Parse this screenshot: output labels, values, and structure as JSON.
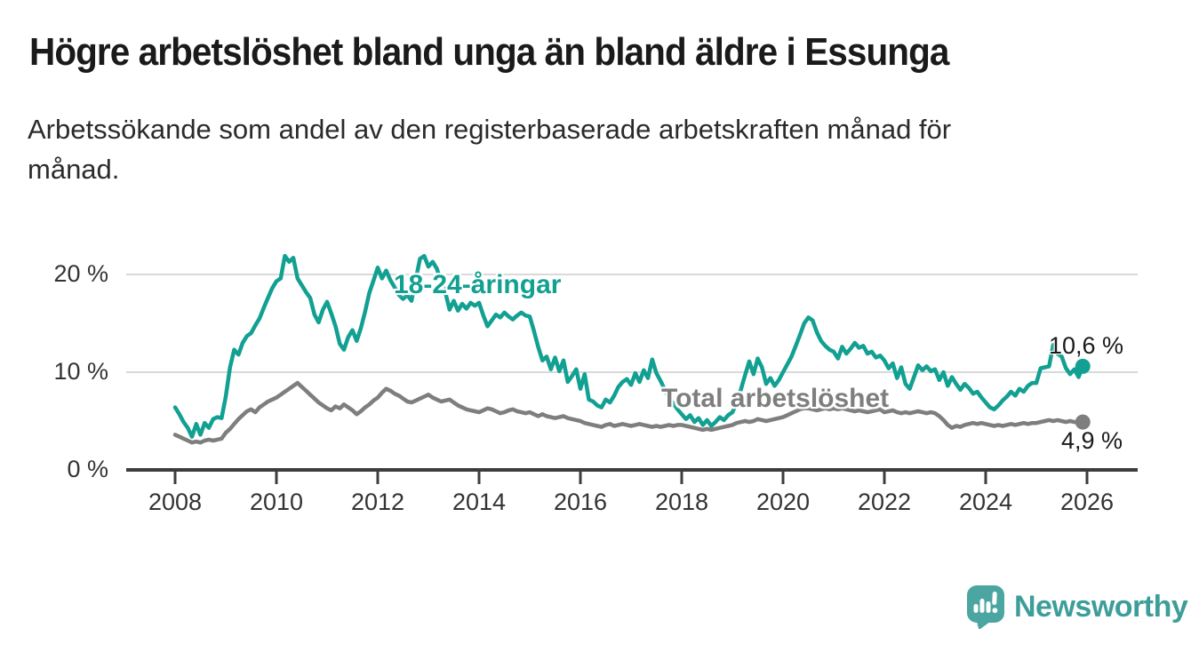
{
  "chart_data": {
    "type": "line",
    "title": "Högre arbetslöshet bland unga än bland äldre i Essunga",
    "subtitle": "Arbetssökande som andel av den registerbaserade arbetskraften månad för månad.",
    "unit": "%",
    "x_start_year": 2008,
    "points_per_year": 12,
    "xlim": [
      2007.0,
      2027.1
    ],
    "ylim": [
      0,
      22.5
    ],
    "grid": "horizontal",
    "legend_position": "inline-labels-on-lines",
    "x_ticks": [
      {
        "year": 2008,
        "label": "2008"
      },
      {
        "year": 2010,
        "label": "2010"
      },
      {
        "year": 2012,
        "label": "2012"
      },
      {
        "year": 2014,
        "label": "2014"
      },
      {
        "year": 2016,
        "label": "2016"
      },
      {
        "year": 2018,
        "label": "2018"
      },
      {
        "year": 2020,
        "label": "2020"
      },
      {
        "year": 2022,
        "label": "2022"
      },
      {
        "year": 2024,
        "label": "2024"
      },
      {
        "year": 2026,
        "label": "2026"
      }
    ],
    "y_ticks": [
      {
        "value": 0,
        "label": "0 %"
      },
      {
        "value": 10,
        "label": "10 %"
      },
      {
        "value": 20,
        "label": "20 %"
      }
    ],
    "series": [
      {
        "id": "young",
        "name": "18-24-åringar",
        "color": "#11A091",
        "end_label": "10,6 %",
        "end_value": 10.6,
        "values": [
          6.4,
          5.7,
          4.9,
          4.3,
          3.4,
          4.7,
          3.6,
          4.8,
          4.3,
          5.2,
          5.4,
          5.3,
          7.5,
          10.5,
          12.3,
          11.8,
          13.0,
          13.7,
          14.0,
          14.8,
          15.5,
          16.6,
          17.6,
          18.6,
          19.3,
          19.6,
          21.9,
          21.3,
          21.7,
          19.6,
          18.9,
          18.2,
          17.6,
          15.9,
          15.1,
          16.4,
          17.2,
          16.0,
          14.7,
          12.9,
          12.3,
          13.6,
          14.3,
          13.2,
          14.5,
          16.2,
          18.1,
          19.4,
          20.7,
          19.6,
          20.4,
          19.4,
          18.7,
          17.9,
          17.5,
          17.9,
          17.3,
          19.5,
          21.6,
          21.9,
          20.8,
          21.3,
          20.6,
          19.2,
          18.2,
          16.4,
          17.3,
          16.3,
          17.0,
          16.5,
          17.1,
          16.8,
          17.1,
          15.8,
          14.7,
          15.3,
          15.9,
          15.6,
          16.1,
          15.7,
          15.4,
          15.8,
          16.1,
          15.8,
          15.7,
          14.2,
          12.6,
          11.2,
          11.6,
          10.3,
          11.5,
          10.1,
          11.2,
          9.0,
          9.6,
          10.3,
          8.3,
          9.8,
          7.2,
          7.0,
          6.6,
          6.4,
          7.2,
          6.9,
          7.6,
          8.5,
          9.0,
          9.3,
          8.7,
          9.9,
          9.0,
          10.2,
          9.4,
          11.3,
          9.9,
          9.1,
          8.2,
          7.4,
          6.8,
          6.2,
          5.7,
          5.2,
          5.6,
          4.9,
          5.3,
          4.6,
          5.1,
          4.5,
          4.9,
          5.4,
          5.1,
          5.6,
          5.9,
          6.8,
          8.2,
          9.7,
          11.1,
          9.8,
          11.4,
          10.5,
          8.8,
          9.4,
          8.6,
          9.2,
          10.0,
          10.8,
          11.6,
          12.7,
          13.8,
          15.0,
          15.6,
          15.3,
          14.1,
          13.2,
          12.7,
          12.3,
          12.1,
          11.4,
          12.6,
          11.9,
          12.4,
          13.0,
          12.5,
          12.7,
          11.9,
          12.1,
          11.5,
          11.7,
          11.2,
          10.4,
          10.9,
          9.4,
          10.5,
          8.8,
          8.3,
          9.5,
          10.7,
          10.2,
          10.6,
          10.1,
          10.3,
          9.2,
          10.0,
          8.6,
          9.5,
          8.8,
          8.2,
          8.8,
          8.4,
          7.8,
          8.0,
          7.4,
          6.9,
          6.4,
          6.2,
          6.6,
          7.1,
          7.5,
          8.0,
          7.6,
          8.3,
          8.0,
          8.6,
          8.9,
          8.9,
          10.4,
          10.5,
          10.6,
          12.8,
          11.9,
          11.6,
          10.4,
          9.8,
          10.3,
          9.5,
          10.6
        ]
      },
      {
        "id": "total",
        "name": "Total arbetslöshet",
        "color": "#7E7E7E",
        "end_label": "4,9 %",
        "end_value": 4.9,
        "values": [
          3.6,
          3.4,
          3.2,
          3.0,
          2.8,
          2.9,
          2.8,
          3.0,
          3.1,
          3.0,
          3.1,
          3.2,
          3.8,
          4.2,
          4.7,
          5.2,
          5.6,
          6.0,
          6.2,
          5.9,
          6.4,
          6.7,
          7.0,
          7.2,
          7.4,
          7.7,
          8.0,
          8.3,
          8.6,
          8.9,
          8.5,
          8.1,
          7.7,
          7.3,
          6.9,
          6.6,
          6.3,
          6.1,
          6.5,
          6.3,
          6.7,
          6.4,
          6.1,
          5.7,
          6.0,
          6.4,
          6.7,
          7.1,
          7.4,
          7.9,
          8.3,
          8.1,
          7.8,
          7.6,
          7.3,
          7.0,
          6.9,
          7.1,
          7.3,
          7.5,
          7.7,
          7.4,
          7.2,
          7.0,
          7.1,
          7.2,
          6.9,
          6.6,
          6.4,
          6.2,
          6.1,
          6.0,
          5.9,
          6.1,
          6.3,
          6.2,
          6.0,
          5.8,
          5.9,
          6.1,
          6.2,
          6.0,
          5.9,
          5.8,
          5.9,
          5.7,
          5.5,
          5.7,
          5.5,
          5.4,
          5.3,
          5.4,
          5.5,
          5.3,
          5.2,
          5.1,
          5.0,
          4.8,
          4.7,
          4.6,
          4.5,
          4.4,
          4.6,
          4.7,
          4.5,
          4.6,
          4.7,
          4.6,
          4.5,
          4.6,
          4.7,
          4.6,
          4.5,
          4.4,
          4.5,
          4.4,
          4.5,
          4.6,
          4.5,
          4.6,
          4.6,
          4.5,
          4.4,
          4.3,
          4.2,
          4.1,
          4.2,
          4.1,
          4.2,
          4.3,
          4.4,
          4.5,
          4.6,
          4.8,
          4.9,
          5.0,
          4.9,
          5.0,
          5.2,
          5.1,
          5.0,
          5.1,
          5.2,
          5.3,
          5.4,
          5.6,
          5.8,
          6.0,
          6.2,
          6.3,
          6.3,
          6.2,
          6.1,
          6.2,
          6.3,
          6.2,
          6.3,
          6.2,
          6.3,
          6.2,
          6.1,
          6.0,
          6.1,
          6.0,
          5.9,
          6.0,
          6.1,
          6.2,
          5.9,
          6.0,
          6.1,
          5.9,
          5.8,
          5.9,
          5.8,
          5.9,
          6.0,
          5.9,
          5.8,
          5.9,
          5.8,
          5.5,
          5.1,
          4.6,
          4.3,
          4.5,
          4.4,
          4.6,
          4.7,
          4.8,
          4.7,
          4.8,
          4.7,
          4.6,
          4.5,
          4.6,
          4.5,
          4.6,
          4.7,
          4.6,
          4.7,
          4.8,
          4.7,
          4.8,
          4.8,
          4.9,
          5.0,
          5.1,
          5.0,
          5.1,
          5.0,
          4.9,
          5.0,
          4.9,
          4.8,
          4.9
        ]
      }
    ]
  },
  "colors": {
    "axis": "#3D3D3D",
    "grid": "#D9D9D9",
    "axis_text": "#333333",
    "title_text": "#1A1A1A",
    "brand_text": "#3D9E99",
    "brand_icon": "#4BA5A0"
  },
  "footer": {
    "brand": "Newsworthy"
  }
}
